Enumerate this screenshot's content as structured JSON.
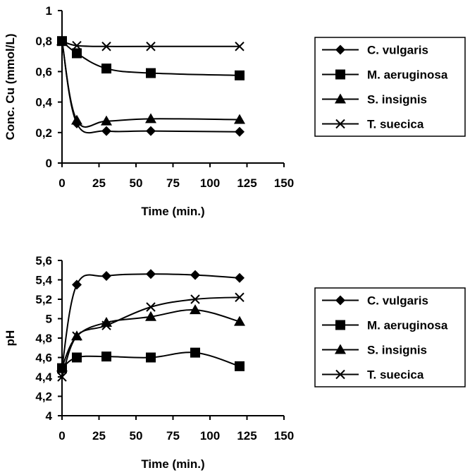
{
  "chart_data": [
    {
      "type": "line",
      "xlabel": "Time (min.)",
      "ylabel": "Conc. Cu (mmol/L)",
      "xlim": [
        0,
        150
      ],
      "ylim": [
        0,
        1
      ],
      "xticks": [
        0,
        25,
        50,
        75,
        100,
        125,
        150
      ],
      "xtick_labels": [
        "0",
        "25",
        "50",
        "75",
        "100",
        "125",
        "150"
      ],
      "yticks": [
        0,
        0.2,
        0.4,
        0.6,
        0.8,
        1
      ],
      "ytick_labels": [
        "0",
        "0,2",
        "0,4",
        "0,6",
        "0,8",
        "1"
      ],
      "grid": false,
      "legend": "right",
      "series": [
        {
          "name": "C. vulgaris",
          "marker": "diamond",
          "x": [
            0,
            10,
            30,
            60,
            120
          ],
          "y": [
            0.8,
            0.26,
            0.21,
            0.21,
            0.205
          ]
        },
        {
          "name": "M. aeruginosa",
          "marker": "square",
          "x": [
            0,
            10,
            30,
            60,
            120
          ],
          "y": [
            0.8,
            0.72,
            0.62,
            0.59,
            0.575
          ]
        },
        {
          "name": "S. insignis",
          "marker": "triangle",
          "x": [
            0,
            10,
            30,
            60,
            120
          ],
          "y": [
            0.8,
            0.28,
            0.275,
            0.29,
            0.285
          ]
        },
        {
          "name": "T. suecica",
          "marker": "x",
          "x": [
            0,
            10,
            30,
            60,
            120
          ],
          "y": [
            0.8,
            0.77,
            0.765,
            0.765,
            0.765
          ]
        }
      ]
    },
    {
      "type": "line",
      "xlabel": "Time (min.)",
      "ylabel": "pH",
      "xlim": [
        0,
        150
      ],
      "ylim": [
        4,
        5.6
      ],
      "xticks": [
        0,
        25,
        50,
        75,
        100,
        125,
        150
      ],
      "xtick_labels": [
        "0",
        "25",
        "50",
        "75",
        "100",
        "125",
        "150"
      ],
      "yticks": [
        4,
        4.2,
        4.4,
        4.6,
        4.8,
        5,
        5.2,
        5.4,
        5.6
      ],
      "ytick_labels": [
        "4",
        "4,2",
        "4,4",
        "4,6",
        "4,8",
        "5",
        "5,2",
        "5,4",
        "5,6"
      ],
      "grid": false,
      "legend": "right",
      "series": [
        {
          "name": "C. vulgaris",
          "marker": "diamond",
          "x": [
            0,
            10,
            30,
            60,
            90,
            120
          ],
          "y": [
            4.5,
            5.35,
            5.44,
            5.46,
            5.45,
            5.42
          ]
        },
        {
          "name": "M. aeruginosa",
          "marker": "square",
          "x": [
            0,
            10,
            30,
            60,
            90,
            120
          ],
          "y": [
            4.49,
            4.6,
            4.61,
            4.6,
            4.65,
            4.51
          ]
        },
        {
          "name": "S. insignis",
          "marker": "triangle",
          "x": [
            0,
            10,
            30,
            60,
            90,
            120
          ],
          "y": [
            4.5,
            4.82,
            4.96,
            5.02,
            5.09,
            4.97
          ]
        },
        {
          "name": "T. suecica",
          "marker": "x",
          "x": [
            0,
            10,
            30,
            60,
            90,
            120
          ],
          "y": [
            4.4,
            4.82,
            4.93,
            5.12,
            5.2,
            5.22
          ]
        }
      ]
    }
  ]
}
